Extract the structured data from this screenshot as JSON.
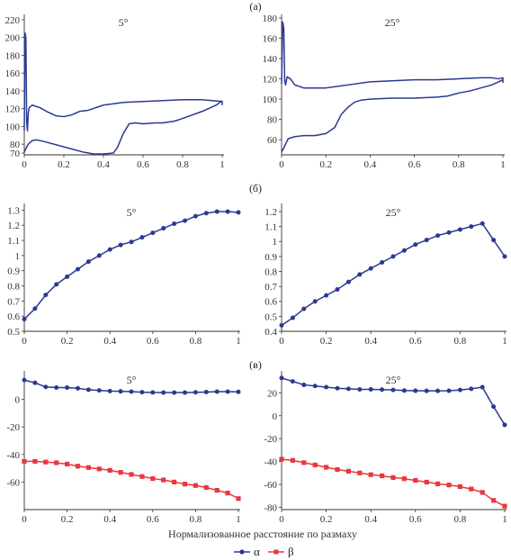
{
  "x_label": "Нормализованное расстояние по размаху",
  "legend": [
    {
      "label": "α",
      "color": "#2b3990",
      "marker": "circle"
    },
    {
      "label": "β",
      "color": "#e8383d",
      "marker": "square"
    }
  ],
  "panel_labels": [
    "(а)",
    "(б)",
    "(в)"
  ],
  "colors": {
    "alpha": "#2b3990",
    "beta": "#e8383d"
  },
  "chart_data": [
    {
      "type": "line",
      "row": "(а)",
      "title": "5°",
      "xlim": [
        0,
        1
      ],
      "ylim": [
        68,
        222
      ],
      "xticks": [
        0,
        0.2,
        0.4,
        0.6,
        0.8,
        1.0
      ],
      "yticks": [
        70,
        80,
        100,
        120,
        140,
        160,
        180,
        200,
        220
      ],
      "series": [
        {
          "color": "#2b3990",
          "markers": false,
          "x": [
            0.0,
            0.004,
            0.008,
            0.012,
            0.016,
            0.02,
            0.025,
            0.04,
            0.08,
            0.12,
            0.16,
            0.2,
            0.24,
            0.28,
            0.32,
            0.4,
            0.5,
            0.6,
            0.7,
            0.8,
            0.9,
            0.95,
            1.0,
            1.0
          ],
          "y": [
            95,
            205,
            200,
            105,
            95,
            115,
            121,
            124,
            121,
            116,
            112,
            111,
            113,
            117,
            118,
            124,
            127,
            128,
            129,
            130,
            130,
            129,
            128,
            124
          ]
        },
        {
          "color": "#2b3990",
          "markers": false,
          "x": [
            0.0,
            0.01,
            0.02,
            0.04,
            0.06,
            0.1,
            0.2,
            0.3,
            0.35,
            0.4,
            0.45,
            0.47,
            0.5,
            0.53,
            0.56,
            0.6,
            0.66,
            0.7,
            0.76,
            0.8,
            0.9,
            0.97,
            1.0
          ],
          "y": [
            71,
            76,
            80,
            84,
            85,
            83,
            77,
            71,
            69,
            69,
            70,
            76,
            92,
            103,
            104,
            103,
            104,
            104,
            106,
            109,
            117,
            124,
            129
          ]
        }
      ]
    },
    {
      "type": "line",
      "row": "(а)",
      "title": "25°",
      "xlim": [
        0,
        1
      ],
      "ylim": [
        45,
        180
      ],
      "xticks": [
        0,
        0.2,
        0.4,
        0.6,
        0.8,
        1.0
      ],
      "yticks": [
        60,
        80,
        100,
        120,
        140,
        160,
        180
      ],
      "series": [
        {
          "color": "#2b3990",
          "markers": false,
          "x": [
            0.0,
            0.005,
            0.01,
            0.014,
            0.018,
            0.025,
            0.04,
            0.06,
            0.1,
            0.2,
            0.3,
            0.4,
            0.5,
            0.6,
            0.7,
            0.8,
            0.9,
            0.95,
            0.98,
            1.0,
            1.0
          ],
          "y": [
            115,
            176,
            170,
            118,
            114,
            122,
            120,
            114,
            111,
            111,
            114,
            117,
            118,
            119,
            119,
            120,
            121,
            121,
            120,
            121,
            116
          ]
        },
        {
          "color": "#2b3990",
          "markers": false,
          "x": [
            0.0,
            0.01,
            0.03,
            0.06,
            0.1,
            0.15,
            0.2,
            0.24,
            0.27,
            0.3,
            0.33,
            0.36,
            0.4,
            0.5,
            0.6,
            0.7,
            0.75,
            0.8,
            0.85,
            0.9,
            0.95,
            1.0
          ],
          "y": [
            48,
            52,
            61,
            63,
            64,
            64,
            66,
            72,
            85,
            92,
            97,
            99,
            100,
            101,
            101,
            102,
            103,
            106,
            108,
            111,
            114,
            119
          ]
        }
      ]
    },
    {
      "type": "line",
      "row": "(б)",
      "title": "5°",
      "xlim": [
        0,
        1
      ],
      "ylim": [
        0.5,
        1.32
      ],
      "xticks": [
        0,
        0.2,
        0.4,
        0.6,
        0.8,
        1.0
      ],
      "yticks": [
        0.5,
        0.6,
        0.7,
        0.8,
        0.9,
        1.0,
        1.1,
        1.2,
        1.3
      ],
      "series": [
        {
          "color": "#2b3990",
          "markers": true,
          "marker": "circle",
          "x": [
            0,
            0.05,
            0.1,
            0.15,
            0.2,
            0.25,
            0.3,
            0.35,
            0.4,
            0.45,
            0.5,
            0.55,
            0.6,
            0.65,
            0.7,
            0.75,
            0.8,
            0.85,
            0.9,
            0.95,
            1.0
          ],
          "y": [
            0.58,
            0.65,
            0.74,
            0.81,
            0.86,
            0.91,
            0.96,
            1.0,
            1.04,
            1.07,
            1.09,
            1.12,
            1.15,
            1.18,
            1.21,
            1.23,
            1.26,
            1.28,
            1.29,
            1.29,
            1.285
          ]
        }
      ]
    },
    {
      "type": "line",
      "row": "(б)",
      "title": "25°",
      "xlim": [
        0,
        1
      ],
      "ylim": [
        0.4,
        1.23
      ],
      "xticks": [
        0,
        0.2,
        0.4,
        0.6,
        0.8,
        1.0
      ],
      "yticks": [
        0.4,
        0.5,
        0.6,
        0.7,
        0.8,
        0.9,
        1.0,
        1.1,
        1.2
      ],
      "series": [
        {
          "color": "#2b3990",
          "markers": true,
          "marker": "circle",
          "x": [
            0,
            0.05,
            0.1,
            0.15,
            0.2,
            0.25,
            0.3,
            0.35,
            0.4,
            0.45,
            0.5,
            0.55,
            0.6,
            0.65,
            0.7,
            0.75,
            0.8,
            0.85,
            0.9,
            0.95,
            1.0
          ],
          "y": [
            0.44,
            0.49,
            0.55,
            0.6,
            0.64,
            0.68,
            0.73,
            0.78,
            0.82,
            0.86,
            0.9,
            0.94,
            0.98,
            1.01,
            1.04,
            1.06,
            1.08,
            1.1,
            1.12,
            1.01,
            0.9
          ]
        }
      ]
    },
    {
      "type": "line",
      "row": "(в)",
      "title": "5°",
      "xlim": [
        0,
        1
      ],
      "ylim": [
        -80,
        18
      ],
      "xticks": [
        0,
        0.2,
        0.4,
        0.6,
        0.8,
        1.0
      ],
      "yticks": [
        -60,
        -40,
        -20,
        0
      ],
      "series": [
        {
          "name": "α",
          "color": "#2b3990",
          "markers": true,
          "marker": "circle",
          "x": [
            0,
            0.05,
            0.1,
            0.15,
            0.2,
            0.25,
            0.3,
            0.35,
            0.4,
            0.45,
            0.5,
            0.55,
            0.6,
            0.65,
            0.7,
            0.75,
            0.8,
            0.85,
            0.9,
            0.95,
            1.0
          ],
          "y": [
            14,
            12,
            9,
            8.5,
            8.5,
            8,
            7,
            6.5,
            6,
            5.8,
            5.6,
            5.2,
            5.0,
            4.9,
            4.9,
            4.9,
            5.1,
            5.3,
            5.6,
            5.6,
            5.4
          ]
        },
        {
          "name": "β",
          "color": "#e8383d",
          "markers": true,
          "marker": "square",
          "x": [
            0,
            0.05,
            0.1,
            0.15,
            0.2,
            0.25,
            0.3,
            0.35,
            0.4,
            0.45,
            0.5,
            0.55,
            0.6,
            0.65,
            0.7,
            0.75,
            0.8,
            0.85,
            0.9,
            0.95,
            1.0
          ],
          "y": [
            -45,
            -45,
            -45.5,
            -46,
            -47,
            -48.5,
            -49.5,
            -50.5,
            -51.5,
            -53,
            -54.5,
            -56,
            -57.5,
            -58.5,
            -60,
            -61.5,
            -62.5,
            -64,
            -66,
            -68,
            -72
          ]
        }
      ]
    },
    {
      "type": "line",
      "row": "(в)",
      "title": "25°",
      "xlim": [
        0,
        1
      ],
      "ylim": [
        -82,
        36
      ],
      "xticks": [
        0,
        0.2,
        0.4,
        0.6,
        0.8,
        1.0
      ],
      "yticks": [
        -80,
        -60,
        -40,
        -20,
        0,
        20
      ],
      "series": [
        {
          "name": "α",
          "color": "#2b3990",
          "markers": true,
          "marker": "circle",
          "x": [
            0,
            0.05,
            0.1,
            0.15,
            0.2,
            0.25,
            0.3,
            0.35,
            0.4,
            0.45,
            0.5,
            0.55,
            0.6,
            0.65,
            0.7,
            0.75,
            0.8,
            0.85,
            0.9,
            0.95,
            1.0
          ],
          "y": [
            33,
            30,
            27,
            26,
            25,
            24,
            23.5,
            23,
            23,
            22.8,
            22.5,
            22,
            21.8,
            21.7,
            21.7,
            21.8,
            22.5,
            23.5,
            25,
            8,
            -8
          ]
        },
        {
          "name": "β",
          "color": "#e8383d",
          "markers": true,
          "marker": "square",
          "x": [
            0,
            0.05,
            0.1,
            0.15,
            0.2,
            0.25,
            0.3,
            0.35,
            0.4,
            0.45,
            0.5,
            0.55,
            0.6,
            0.65,
            0.7,
            0.75,
            0.8,
            0.85,
            0.9,
            0.95,
            1.0
          ],
          "y": [
            -38,
            -39,
            -41,
            -43,
            -45,
            -47,
            -48.5,
            -50,
            -51.5,
            -52.5,
            -54,
            -55,
            -56.5,
            -58,
            -59.5,
            -60.5,
            -62,
            -64,
            -67,
            -74,
            -79
          ]
        }
      ]
    }
  ]
}
